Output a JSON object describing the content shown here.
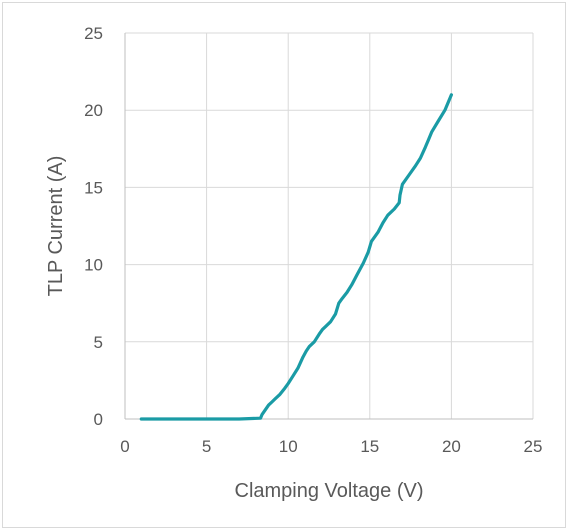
{
  "chart_data": {
    "type": "line",
    "title": "",
    "xlabel": "Clamping Voltage (V)",
    "ylabel": "TLP Current (A)",
    "xlim": [
      0,
      25
    ],
    "ylim": [
      0,
      25
    ],
    "xticks": [
      "0",
      "5",
      "10",
      "15",
      "20",
      "25"
    ],
    "yticks": [
      "0",
      "5",
      "10",
      "15",
      "20",
      "25"
    ],
    "grid": true,
    "legend": "none",
    "series": [
      {
        "color": "#1a9ba5",
        "x": [
          1.0,
          3.0,
          5.0,
          7.0,
          8.3,
          8.4,
          8.6,
          8.8,
          9.0,
          9.2,
          9.5,
          9.8,
          10.0,
          10.3,
          10.6,
          10.9,
          11.1,
          11.3,
          11.6,
          11.9,
          12.1,
          12.3,
          12.6,
          12.9,
          13.1,
          13.3,
          13.6,
          13.9,
          14.2,
          14.6,
          14.9,
          15.1,
          15.5,
          15.8,
          16.1,
          16.5,
          16.8,
          16.85,
          17.0,
          17.4,
          17.8,
          18.1,
          18.4,
          18.6,
          18.8,
          19.2,
          19.6,
          20.0
        ],
        "y": [
          0,
          0,
          0,
          0,
          0.05,
          0.3,
          0.6,
          0.9,
          1.1,
          1.3,
          1.6,
          2.0,
          2.3,
          2.8,
          3.3,
          4.0,
          4.4,
          4.7,
          5.0,
          5.5,
          5.8,
          6.0,
          6.3,
          6.8,
          7.5,
          7.8,
          8.2,
          8.7,
          9.3,
          10.1,
          10.8,
          11.5,
          12.1,
          12.7,
          13.2,
          13.6,
          14.0,
          14.5,
          15.2,
          15.8,
          16.4,
          16.9,
          17.6,
          18.1,
          18.6,
          19.3,
          20.0,
          21.0
        ]
      }
    ]
  }
}
